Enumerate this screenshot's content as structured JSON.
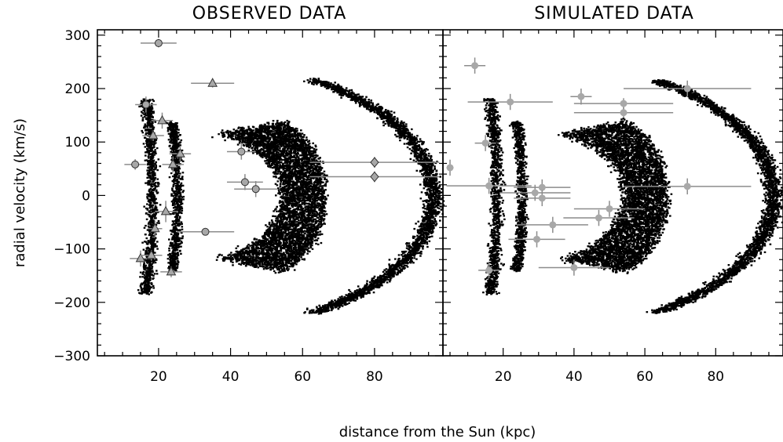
{
  "chart_data": [
    {
      "type": "scatter",
      "title": "OBSERVED DATA",
      "xlabel": "distance from the Sun (kpc)",
      "ylabel": "radial velocity (km/s)",
      "xlim": [
        3,
        99
      ],
      "ylim": [
        -300,
        310
      ],
      "xticks": [
        "20",
        "40",
        "60",
        "80"
      ],
      "yticks": [
        "300",
        "200",
        "100",
        "0",
        "−100",
        "−200",
        "−300"
      ],
      "grid": false,
      "series": [
        {
          "marker": "circle",
          "points": [
            {
              "x": 20,
              "y": 285,
              "xerr": 5,
              "yerr": 8
            },
            {
              "x": 16.5,
              "y": 170,
              "xerr": 3,
              "yerr": 15
            },
            {
              "x": 13.5,
              "y": 58,
              "xerr": 3,
              "yerr": 10
            },
            {
              "x": 33,
              "y": -68,
              "xerr": 8,
              "yerr": 5
            },
            {
              "x": 43,
              "y": 82,
              "xerr": 4,
              "yerr": 15
            },
            {
              "x": 44,
              "y": 25,
              "xerr": 5,
              "yerr": 15
            },
            {
              "x": 47,
              "y": 12,
              "xerr": 6,
              "yerr": 15
            }
          ]
        },
        {
          "marker": "triangle",
          "points": [
            {
              "x": 35,
              "y": 210,
              "xerr": 6,
              "yerr": 8
            },
            {
              "x": 21,
              "y": 140,
              "xerr": 3,
              "yerr": 15
            },
            {
              "x": 18.5,
              "y": 112,
              "xerr": 3,
              "yerr": 10
            },
            {
              "x": 26,
              "y": 78,
              "xerr": 3,
              "yerr": 15
            },
            {
              "x": 24,
              "y": 58,
              "xerr": 3,
              "yerr": 15
            },
            {
              "x": 22,
              "y": -30,
              "xerr": 3,
              "yerr": 20
            },
            {
              "x": 19,
              "y": -62,
              "xerr": 2,
              "yerr": 15
            },
            {
              "x": 15,
              "y": -118,
              "xerr": 3,
              "yerr": 15
            },
            {
              "x": 18,
              "y": -112,
              "xerr": 3,
              "yerr": 10
            },
            {
              "x": 23.5,
              "y": -143,
              "xerr": 3,
              "yerr": 10
            }
          ]
        },
        {
          "marker": "diamond",
          "points": [
            {
              "x": 80,
              "y": 62,
              "xerr": 18,
              "yerr": 10
            },
            {
              "x": 80,
              "y": 35,
              "xerr": 18,
              "yerr": 10
            }
          ]
        }
      ]
    },
    {
      "type": "scatter",
      "title": "SIMULATED DATA",
      "xlabel": "distance from the Sun (kpc)",
      "xlim": [
        3,
        99
      ],
      "ylim": [
        -300,
        310
      ],
      "xticks": [
        "20",
        "40",
        "60",
        "80"
      ],
      "grid": false,
      "series": [
        {
          "marker": "circle",
          "points": [
            {
              "x": 12,
              "y": 243,
              "xerr": 3,
              "yerr": 15
            },
            {
              "x": 5,
              "y": 52,
              "xerr": 1,
              "yerr": 15
            },
            {
              "x": 15,
              "y": 98,
              "xerr": 3,
              "yerr": 15
            },
            {
              "x": 22,
              "y": 175,
              "xerr": 12,
              "yerr": 15
            },
            {
              "x": 42,
              "y": 185,
              "xerr": 3,
              "yerr": 15
            },
            {
              "x": 54,
              "y": 172,
              "xerr": 14,
              "yerr": 10
            },
            {
              "x": 54,
              "y": 155,
              "xerr": 14,
              "yerr": 10
            },
            {
              "x": 72,
              "y": 200,
              "xerr": 18,
              "yerr": 15
            },
            {
              "x": 16,
              "y": 18,
              "xerr": 12,
              "yerr": 15
            },
            {
              "x": 29,
              "y": 5,
              "xerr": 10,
              "yerr": 15
            },
            {
              "x": 31,
              "y": 15,
              "xerr": 8,
              "yerr": 15
            },
            {
              "x": 31,
              "y": -5,
              "xerr": 8,
              "yerr": 15
            },
            {
              "x": 50,
              "y": -25,
              "xerr": 10,
              "yerr": 15
            },
            {
              "x": 47,
              "y": -42,
              "xerr": 10,
              "yerr": 15
            },
            {
              "x": 34,
              "y": -55,
              "xerr": 10,
              "yerr": 15
            },
            {
              "x": 29.5,
              "y": -82,
              "xerr": 8,
              "yerr": 15
            },
            {
              "x": 40,
              "y": -135,
              "xerr": 10,
              "yerr": 15
            },
            {
              "x": 16,
              "y": -140,
              "xerr": 3,
              "yerr": 15
            },
            {
              "x": 72,
              "y": 17,
              "xerr": 18,
              "yerr": 15
            }
          ]
        }
      ]
    }
  ],
  "background_colors": {
    "dots": "#000000",
    "markers": "#a8a8a8",
    "errorbars": "#8c8c8c"
  }
}
